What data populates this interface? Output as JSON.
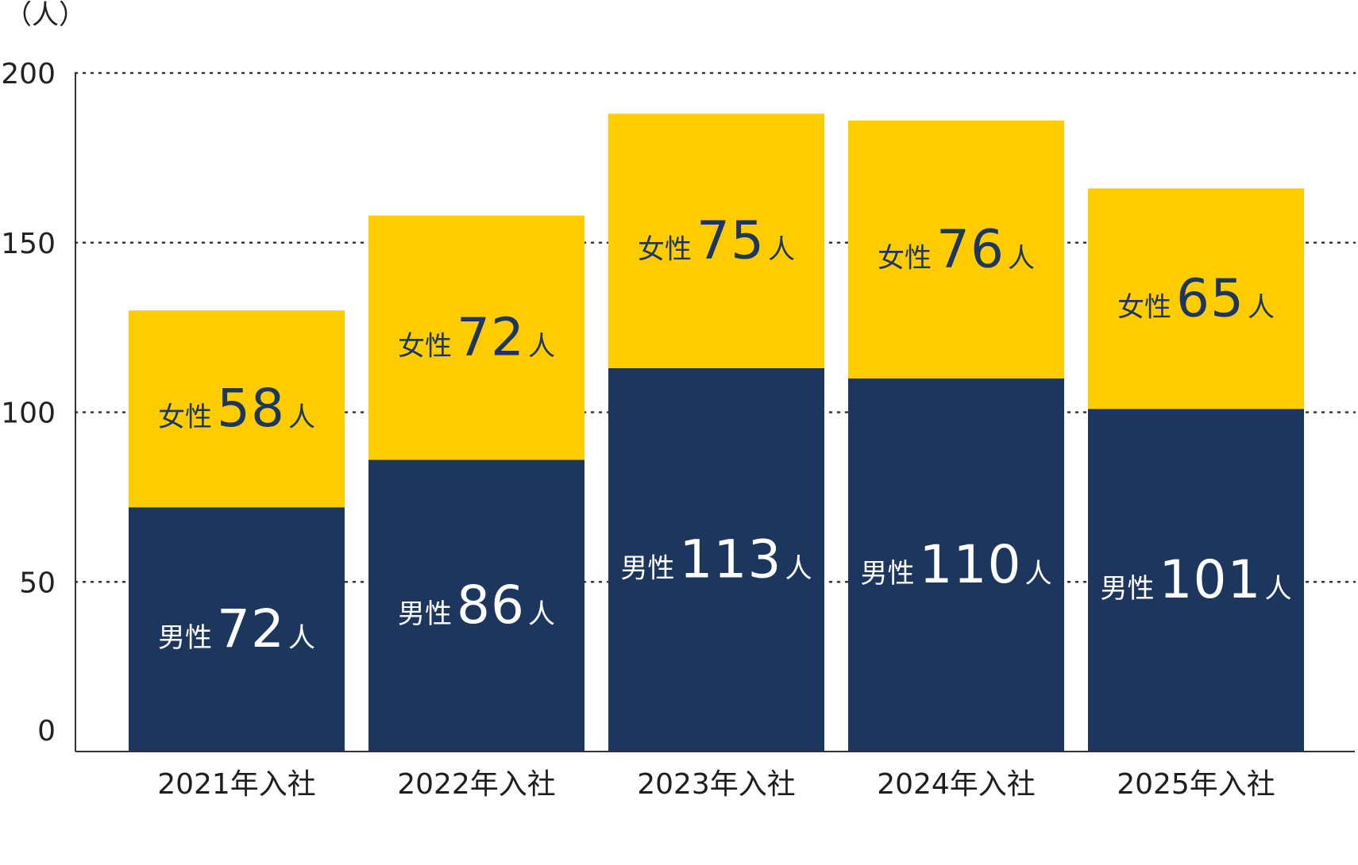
{
  "chart_data": {
    "type": "bar",
    "stacked": true,
    "title": "",
    "xlabel": "",
    "ylabel": "（人）",
    "ylim": [
      0,
      200
    ],
    "yticks": [
      0,
      50,
      100,
      150,
      200
    ],
    "grid": "dotted horizontal",
    "categories": [
      "2021年入社",
      "2022年入社",
      "2023年入社",
      "2024年入社",
      "2025年入社"
    ],
    "unit_suffix": "人",
    "series": [
      {
        "name": "男性",
        "color": "#1c365d",
        "label_color": "#ffffff",
        "values": [
          72,
          86,
          113,
          110,
          101
        ]
      },
      {
        "name": "女性",
        "color": "#ffcc00",
        "label_color": "#1c365d",
        "values": [
          58,
          72,
          75,
          76,
          65
        ]
      }
    ],
    "colors": {
      "axis": "#333333",
      "grid": "#333333",
      "background": "#ffffff"
    }
  }
}
